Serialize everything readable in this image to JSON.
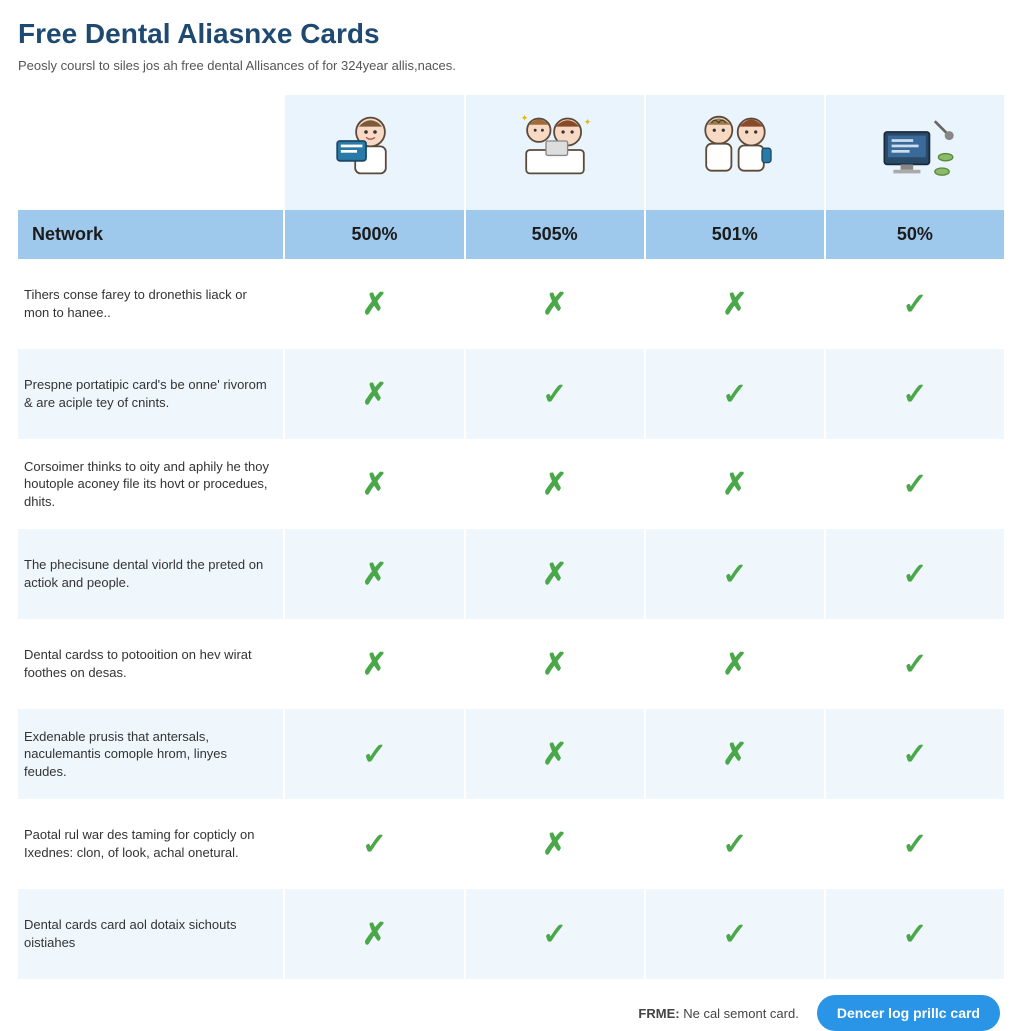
{
  "title": "Free Dental Aliasnxe Cards",
  "subtitle": "Peosly coursl to siles jos ah free dental Allisances of for 324year allis,naces.",
  "colors": {
    "title": "#1e4a72",
    "header_bg": "#9ec9ec",
    "icon_row_bg": "#eaf4fc",
    "stripe_even": "#eff7fd",
    "stripe_odd": "#ffffff",
    "check": "#4aa84a",
    "cross": "#4aa84a",
    "cta_bg": "#2a95e6",
    "cta_text": "#ffffff"
  },
  "columns": [
    {
      "key": "desc",
      "header": "Network"
    },
    {
      "key": "p1",
      "header": "500%"
    },
    {
      "key": "p2",
      "header": "505%"
    },
    {
      "key": "p3",
      "header": "501%"
    },
    {
      "key": "p4",
      "header": "50%"
    }
  ],
  "rows": [
    {
      "desc": "Tihers conse farey to dronethis liack or mon to hanee..",
      "cells": [
        "x",
        "x",
        "x",
        "v"
      ]
    },
    {
      "desc": "Prespne portatipic card's be onne' rivorom & are aciple tey of cnints.",
      "cells": [
        "x",
        "v",
        "v",
        "v"
      ]
    },
    {
      "desc": "Corsoimer thinks to oity and aphily he thoy houtople aconey file its hovt or procedues, dhits.",
      "cells": [
        "x",
        "x",
        "x",
        "v"
      ]
    },
    {
      "desc": "The phecisune dental viorld the preted on actiok and people.",
      "cells": [
        "x",
        "x",
        "v",
        "v"
      ]
    },
    {
      "desc": "Dental cardss to potooition on hev wirat foothes on desas.",
      "cells": [
        "x",
        "x",
        "x",
        "v"
      ]
    },
    {
      "desc": "Exdenable prusis that antersals, naculemantis comople hrom, linyes feudes.",
      "cells": [
        "v",
        "x",
        "x",
        "v"
      ]
    },
    {
      "desc": "Paotal rul war des taming for copticly on Ixednes: clon, of look, achal onetural.",
      "cells": [
        "v",
        "x",
        "v",
        "v"
      ]
    },
    {
      "desc": "Dental cards card aol dotaix sichouts oistiahes",
      "cells": [
        "x",
        "v",
        "v",
        "v"
      ]
    }
  ],
  "marks": {
    "v": "✓",
    "x": "✗"
  },
  "footer": {
    "note_label": "FRME:",
    "note_text": "Ne cal semont card.",
    "cta": "Dencer log prillc card"
  },
  "icons": {
    "p1": "person-card",
    "p2": "two-people-desk",
    "p3": "two-doctors",
    "p4": "monitor-tools"
  }
}
